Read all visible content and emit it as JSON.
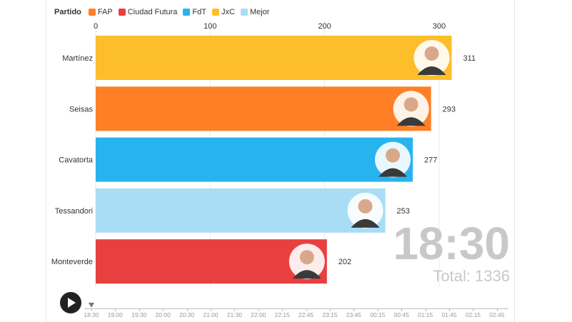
{
  "legend": {
    "title": "Partido",
    "items": [
      {
        "label": "FAP",
        "color": "#FF7F27"
      },
      {
        "label": "Ciudad Futura",
        "color": "#E8403F"
      },
      {
        "label": "FdT",
        "color": "#27B4EE"
      },
      {
        "label": "JxC",
        "color": "#FDBE2C"
      },
      {
        "label": "Mejor",
        "color": "#A8DDF5"
      }
    ]
  },
  "chart_data": {
    "type": "bar",
    "orientation": "horizontal",
    "categories": [
      "Martínez",
      "Seisas",
      "Cavatorta",
      "Tessandori",
      "Monteverde"
    ],
    "values": [
      311,
      293,
      277,
      253,
      202
    ],
    "parties": [
      "JxC",
      "FAP",
      "FdT",
      "Mejor",
      "Ciudad Futura"
    ],
    "xlim": [
      0,
      320
    ],
    "x_ticks": [
      0,
      100,
      200,
      300
    ],
    "grid": true,
    "legend_position": "top-left"
  },
  "overlay": {
    "time": "18:30",
    "total": "Total: 1336"
  },
  "timeline": {
    "labels": [
      "18:30",
      "19:00",
      "19:30",
      "20:00",
      "20:30",
      "21:00",
      "21:30",
      "22:00",
      "22:15",
      "22:45",
      "23:15",
      "23:45",
      "00:15",
      "00:45",
      "01:15",
      "01:45",
      "02:15",
      "02:45"
    ],
    "current": "18:30"
  }
}
